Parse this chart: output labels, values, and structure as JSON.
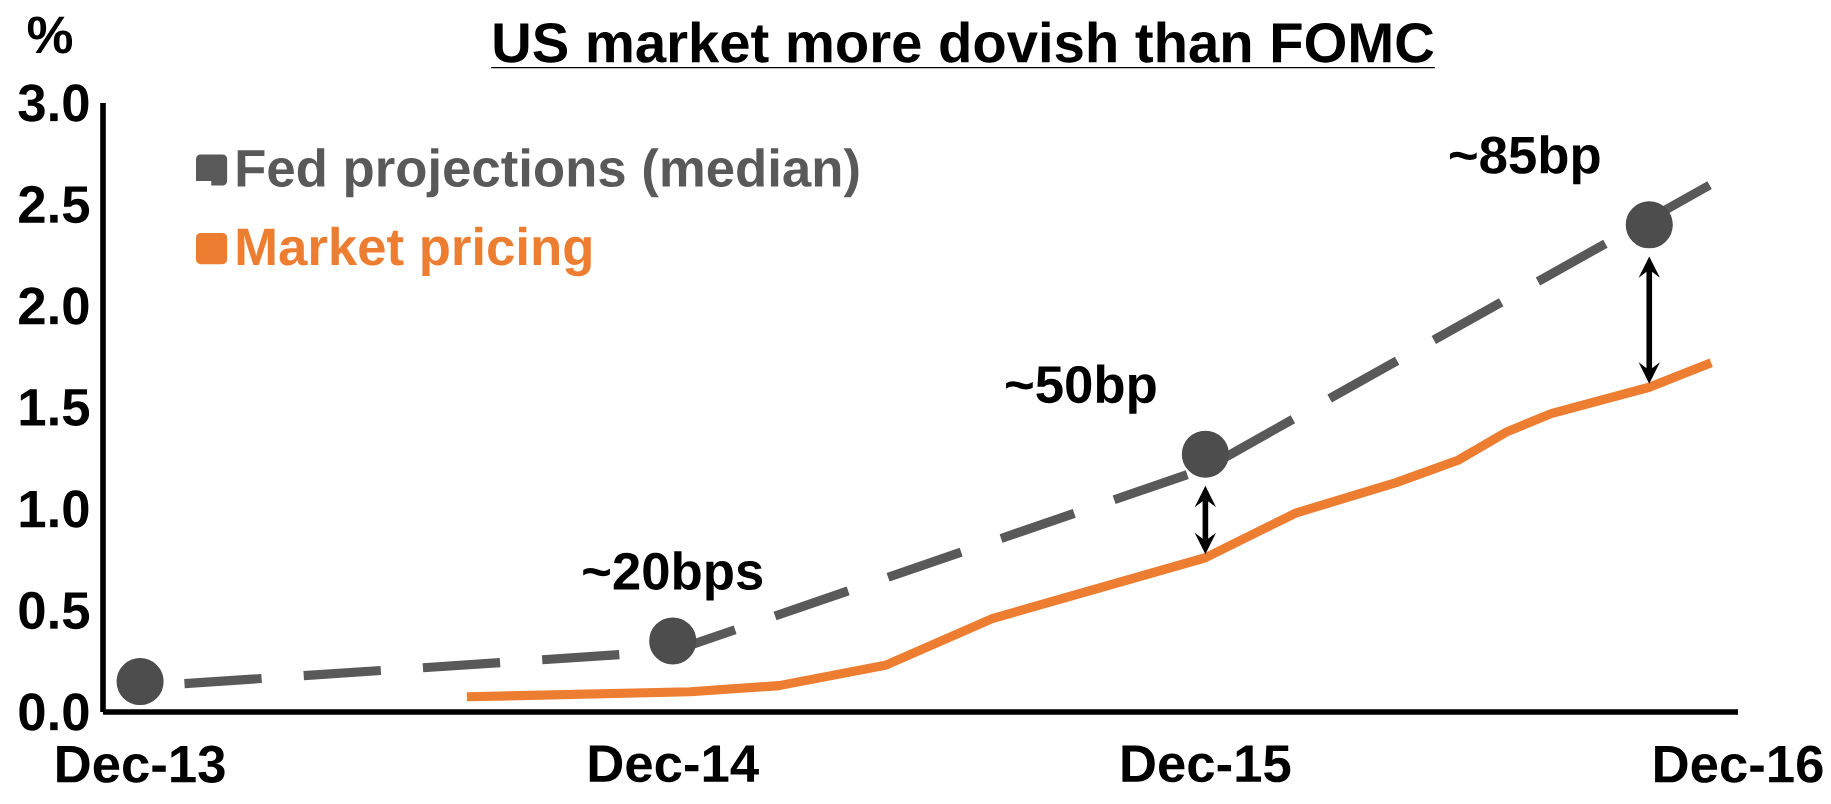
{
  "chart_data": {
    "type": "line",
    "title": "US market more dovish than FOMC",
    "ylabel": "%",
    "series": [
      {
        "name": "Fed projections (median)",
        "color": "#595959",
        "line_style": "dashed",
        "x": [
          "2014-01-01",
          "2014-12-01",
          "2015-12-01",
          "2016-11-13"
        ],
        "values": [
          0.14,
          0.3,
          1.2,
          2.6
        ]
      },
      {
        "name": "Market pricing",
        "color": "#ed7d31",
        "line_style": "solid",
        "x": [
          "2014-07-12",
          "2014-12-13",
          "2015-02-13",
          "2015-04-25",
          "2015-07-07",
          "2015-12-01",
          "2016-02-02",
          "2016-04-10",
          "2016-05-22",
          "2016-06-25",
          "2016-07-25",
          "2016-10-01",
          "2016-11-13"
        ],
        "values": [
          0.075,
          0.1,
          0.13,
          0.23,
          0.46,
          0.76,
          0.98,
          1.13,
          1.24,
          1.38,
          1.47,
          1.6,
          1.72
        ]
      },
      {
        "type": "scatter",
        "color": "#4d4d4d",
        "marker": "circle",
        "x": [
          "2013-12-01",
          "2014-12-01",
          "2015-12-01",
          "2016-10-01"
        ],
        "values": [
          0.15,
          0.35,
          1.27,
          2.4
        ]
      }
    ],
    "xlim": [
      "2013-11-06",
      "2016-12-01"
    ],
    "xticks": [
      {
        "value": "2013-12-01",
        "label": "Dec-13"
      },
      {
        "value": "2014-12-01",
        "label": "Dec-14"
      },
      {
        "value": "2015-12-01",
        "label": "Dec-15"
      },
      {
        "value": "2016-12-01",
        "label": "Dec-16"
      }
    ],
    "ylim": [
      0,
      3
    ],
    "yticks": [
      {
        "value": 0,
        "label": "0.0"
      },
      {
        "value": 0.5,
        "label": "0.5"
      },
      {
        "value": 1,
        "label": "1.0"
      },
      {
        "value": 1.5,
        "label": "1.5"
      },
      {
        "value": 2,
        "label": "2.0"
      },
      {
        "value": 2.5,
        "label": "2.5"
      },
      {
        "value": 3,
        "label": "3.0"
      }
    ],
    "grid": false,
    "legend": "top left",
    "annotations": [
      {
        "text": "~20bps",
        "x": "2014-12-01",
        "y": 0.35
      },
      {
        "text": "~50bp",
        "x": "2015-12-01",
        "y": 1.27
      },
      {
        "text": "~85bp",
        "x": "2016-10-01",
        "y": 2.4
      }
    ]
  }
}
